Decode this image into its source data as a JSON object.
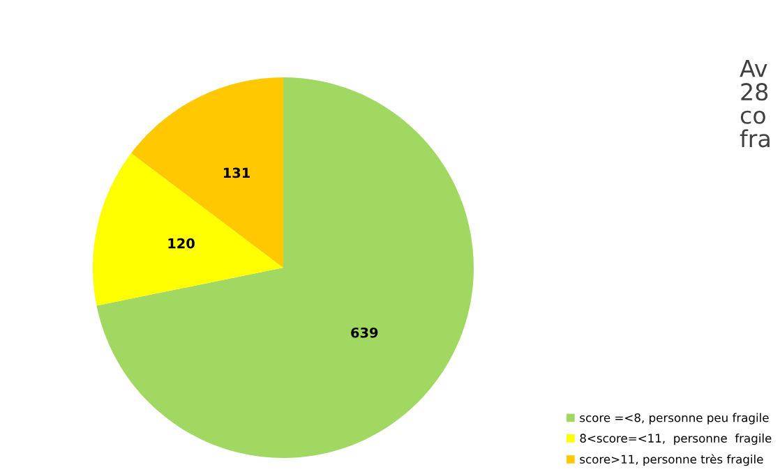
{
  "chart_data": {
    "type": "pie",
    "categories": [
      "score =<8, personne peu fragile",
      "8<score=<11,  personne  fragile",
      "score>11, personne très fragile"
    ],
    "values": [
      639,
      120,
      131
    ],
    "colors": [
      "#a0d862",
      "#ffff00",
      "#ffc800"
    ],
    "data_labels": true,
    "legend": "bottom right",
    "annotations": [
      "Av\n28\nco\nfra"
    ]
  }
}
